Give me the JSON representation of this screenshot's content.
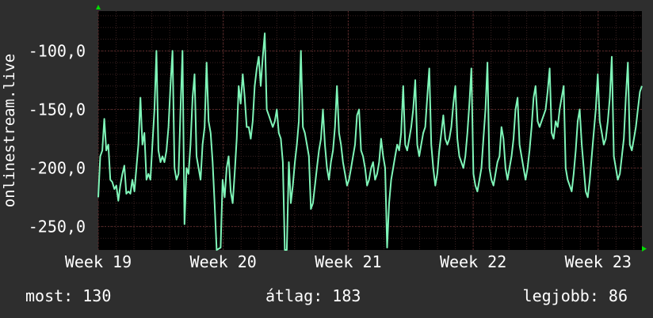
{
  "chart_data": {
    "type": "line",
    "ylabel": "onlinestream.live",
    "xlabel": "",
    "title": "",
    "ylim": [
      -270,
      -66
    ],
    "y_ticks": [
      -100,
      -150,
      -200,
      -250
    ],
    "y_tick_labels": [
      "-100,0",
      "-150,0",
      "-200,0",
      "-250,0"
    ],
    "x_ticks": [
      0,
      1,
      2,
      3,
      4
    ],
    "x_tick_labels": [
      "Week 19",
      "Week 20",
      "Week 21",
      "Week 22",
      "Week 23"
    ],
    "xlim": [
      0,
      4.35
    ],
    "grid": true,
    "colors": {
      "line": "#7ff5b8",
      "background": "#000000",
      "grid": "#5a2a2a",
      "axis_arrow": "#00dd00"
    },
    "series": [
      {
        "values": [
          -225,
          -190,
          -185,
          -158,
          -185,
          -180,
          -210,
          -212,
          -218,
          -215,
          -228,
          -215,
          -205,
          -198,
          -222,
          -220,
          -222,
          -210,
          -220,
          -200,
          -180,
          -140,
          -180,
          -170,
          -210,
          -205,
          -210,
          -180,
          -150,
          -100,
          -185,
          -195,
          -190,
          -195,
          -185,
          -165,
          -130,
          -100,
          -200,
          -210,
          -205,
          -150,
          -100,
          -248,
          -200,
          -205,
          -180,
          -140,
          -120,
          -190,
          -200,
          -210,
          -180,
          -165,
          -110,
          -160,
          -170,
          -195,
          -230,
          -270,
          -269,
          -268,
          -210,
          -225,
          -200,
          -190,
          -220,
          -230,
          -205,
          -175,
          -130,
          -145,
          -120,
          -140,
          -165,
          -165,
          -175,
          -160,
          -130,
          -115,
          -105,
          -130,
          -105,
          -85,
          -150,
          -155,
          -160,
          -165,
          -160,
          -150,
          -170,
          -175,
          -195,
          -270,
          -270,
          -195,
          -230,
          -215,
          -195,
          -180,
          -160,
          -100,
          -165,
          -170,
          -180,
          -190,
          -235,
          -230,
          -215,
          -200,
          -185,
          -175,
          -150,
          -180,
          -200,
          -210,
          -195,
          -185,
          -165,
          -130,
          -170,
          -180,
          -195,
          -205,
          -215,
          -210,
          -200,
          -190,
          -180,
          -155,
          -150,
          -185,
          -190,
          -200,
          -215,
          -210,
          -200,
          -195,
          -210,
          -205,
          -195,
          -175,
          -190,
          -200,
          -268,
          -230,
          -210,
          -200,
          -190,
          -180,
          -185,
          -170,
          -130,
          -180,
          -185,
          -175,
          -165,
          -150,
          -125,
          -180,
          -190,
          -180,
          -170,
          -165,
          -140,
          -115,
          -180,
          -200,
          -215,
          -205,
          -185,
          -170,
          -155,
          -175,
          -180,
          -175,
          -165,
          -145,
          -130,
          -175,
          -190,
          -195,
          -200,
          -190,
          -170,
          -145,
          -115,
          -205,
          -215,
          -220,
          -210,
          -200,
          -175,
          -150,
          -110,
          -200,
          -210,
          -215,
          -205,
          -195,
          -190,
          -165,
          -175,
          -200,
          -210,
          -200,
          -190,
          -175,
          -150,
          -140,
          -180,
          -190,
          -200,
          -210,
          -200,
          -185,
          -165,
          -140,
          -130,
          -160,
          -165,
          -160,
          -155,
          -150,
          -135,
          -115,
          -170,
          -175,
          -160,
          -165,
          -150,
          -140,
          -130,
          -200,
          -210,
          -215,
          -220,
          -205,
          -185,
          -160,
          -150,
          -180,
          -200,
          -220,
          -225,
          -210,
          -190,
          -170,
          -150,
          -120,
          -160,
          -170,
          -180,
          -175,
          -160,
          -140,
          -105,
          -190,
          -200,
          -210,
          -205,
          -190,
          -175,
          -140,
          -110,
          -180,
          -185,
          -175,
          -165,
          -150,
          -135,
          -130
        ]
      }
    ]
  },
  "footer": {
    "current": "most: 130",
    "average": "átlag: 183",
    "best": "legjobb: 86"
  }
}
